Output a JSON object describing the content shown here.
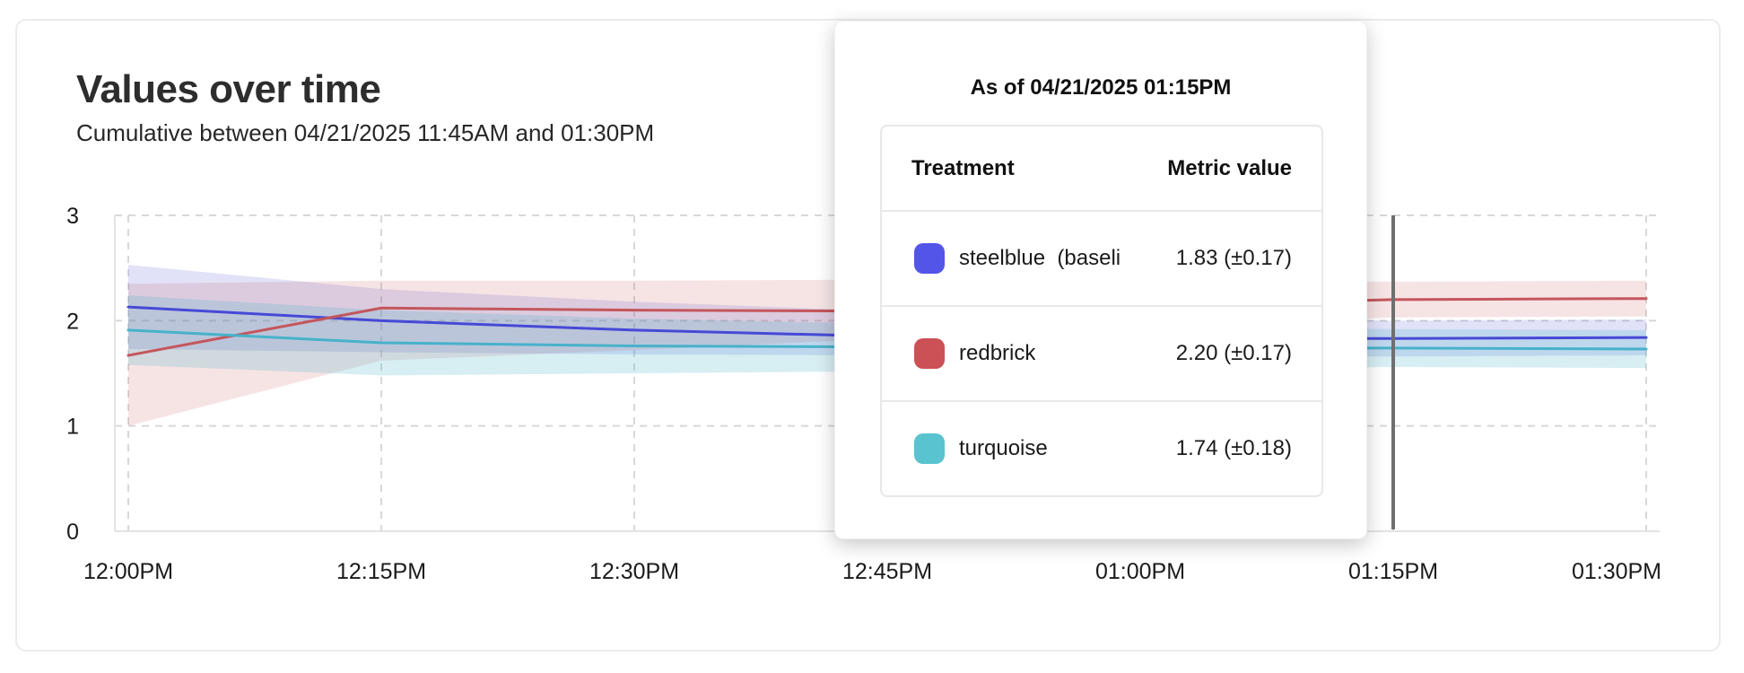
{
  "card": {
    "title": "Values over time",
    "subtitle": "Cumulative between 04/21/2025 11:45AM and 01:30PM"
  },
  "chart_data": {
    "type": "line",
    "title": "Values over time",
    "xlabel": "",
    "ylabel": "",
    "x": [
      "12:00PM",
      "12:15PM",
      "12:30PM",
      "12:45PM",
      "01:00PM",
      "01:15PM",
      "01:30PM"
    ],
    "ylim": [
      0,
      3
    ],
    "yticks": [
      0,
      1,
      2,
      3
    ],
    "grid": "dashed",
    "legend_position": "none",
    "crosshair_x": "01:15PM",
    "series": [
      {
        "name": "steelblue (baseline)",
        "color": "#4749d6",
        "band_opacity": 0.16,
        "values": [
          2.13,
          2.0,
          1.91,
          1.85,
          1.83,
          1.83,
          1.84
        ],
        "lower": [
          1.73,
          1.7,
          1.68,
          1.67,
          1.66,
          1.66,
          1.67
        ],
        "upper": [
          2.53,
          2.3,
          2.18,
          2.09,
          2.03,
          2.0,
          2.01
        ]
      },
      {
        "name": "redbrick",
        "color": "#c4565c",
        "band_opacity": 0.16,
        "values": [
          1.67,
          2.12,
          2.1,
          2.09,
          2.14,
          2.2,
          2.21
        ],
        "lower": [
          1.0,
          1.62,
          1.72,
          1.83,
          1.93,
          2.03,
          2.04
        ],
        "upper": [
          2.35,
          2.38,
          2.38,
          2.39,
          2.38,
          2.37,
          2.38
        ]
      },
      {
        "name": "turquoise",
        "color": "#47b2ca",
        "band_opacity": 0.22,
        "values": [
          1.91,
          1.79,
          1.76,
          1.75,
          1.74,
          1.74,
          1.73
        ],
        "lower": [
          1.58,
          1.48,
          1.5,
          1.52,
          1.54,
          1.56,
          1.55
        ],
        "upper": [
          2.24,
          2.1,
          2.02,
          1.97,
          1.94,
          1.92,
          1.91
        ]
      }
    ]
  },
  "tooltip": {
    "title": "As of 04/21/2025 01:15PM",
    "columns": [
      "Treatment",
      "Metric value"
    ],
    "rows": [
      {
        "label": "steelblue  (baseli",
        "value": "1.83 (±0.17)",
        "swatch_color": "#5355e8"
      },
      {
        "label": "redbrick",
        "value": "2.20 (±0.17)",
        "swatch_color": "#cb5157"
      },
      {
        "label": "turquoise",
        "value": "1.74 (±0.18)",
        "swatch_color": "#59c3cf"
      }
    ]
  }
}
